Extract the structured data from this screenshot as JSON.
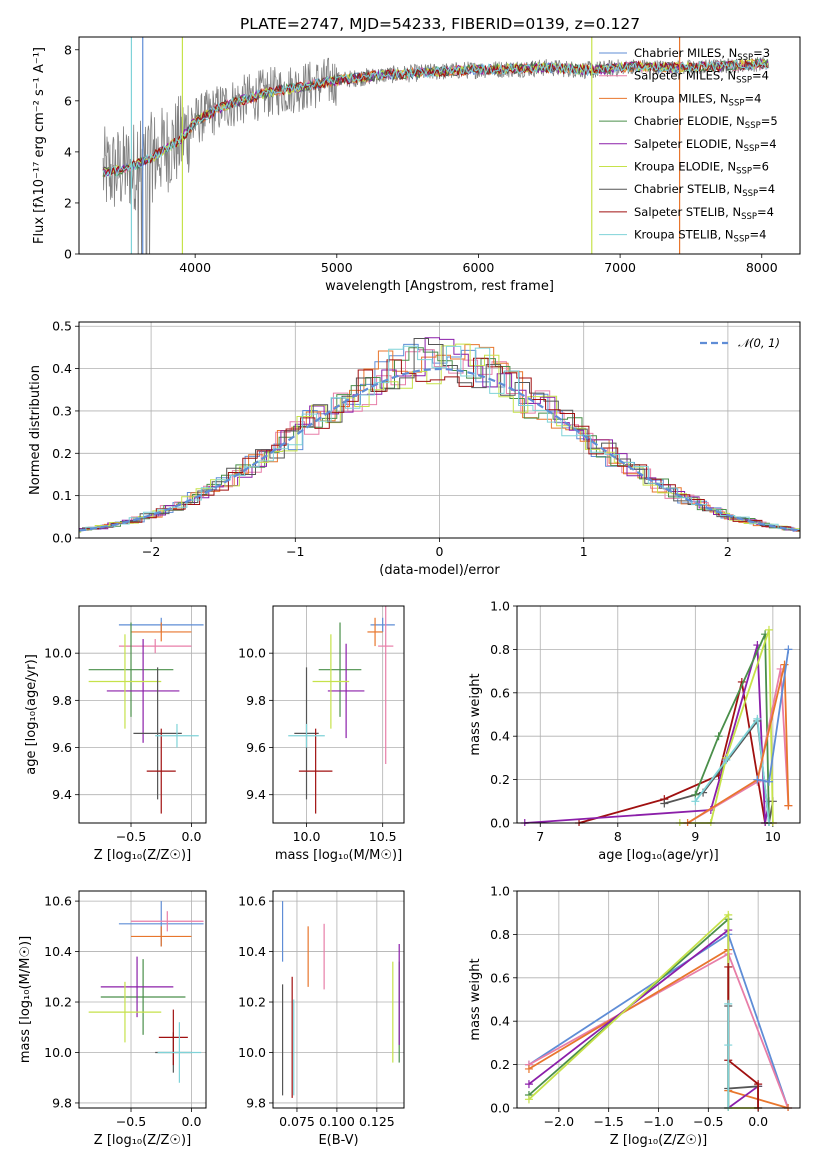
{
  "title": "PLATE=2747, MJD=54233, FIBERID=0139, z=0.127",
  "colors": {
    "gray": "#808080",
    "blue": "#5f8dd6",
    "orange": "#e8762d",
    "green": "#4a8f4a",
    "purple": "#8b1fa9",
    "pink": "#e87ea8",
    "yellowgreen": "#c6e24a",
    "darkgray": "#555555",
    "darkred": "#a01010",
    "cyan": "#7fd3d8"
  },
  "chart_data": [
    {
      "id": "spectrum",
      "type": "line",
      "xlabel": "wavelength [Angstrom, rest frame]",
      "ylabel": "Flux [fλ10⁻¹⁷ erg cm⁻² s⁻¹ A⁻¹]",
      "xlim": [
        3180,
        8270
      ],
      "ylim": [
        0,
        8.5
      ],
      "xticks": [
        4000,
        5000,
        6000,
        7000,
        8000
      ],
      "yticks": [
        0,
        2,
        4,
        6,
        8
      ],
      "continuum": {
        "x": [
          3350,
          3500,
          3700,
          3900,
          4000,
          4200,
          4500,
          4800,
          5000,
          5300,
          5600,
          5900,
          6200,
          6500,
          6800,
          7100,
          7400,
          7700,
          8000
        ],
        "y": [
          3.2,
          3.3,
          3.8,
          4.5,
          5.2,
          5.8,
          6.3,
          6.6,
          6.8,
          7.0,
          7.1,
          7.2,
          7.25,
          7.3,
          7.2,
          7.35,
          7.3,
          7.35,
          7.45
        ]
      },
      "legend": [
        {
          "label": "Chabrier MILES, N",
          "sub": "SSP",
          "suffix": "=3",
          "color": "#5f8dd6"
        },
        {
          "label": "Salpeter MILES, N",
          "sub": "SSP",
          "suffix": "=4",
          "color": "#e87ea8"
        },
        {
          "label": "Kroupa MILES, N",
          "sub": "SSP",
          "suffix": "=4",
          "color": "#e8762d"
        },
        {
          "label": "Chabrier ELODIE, N",
          "sub": "SSP",
          "suffix": "=5",
          "color": "#4a8f4a"
        },
        {
          "label": "Salpeter ELODIE, N",
          "sub": "SSP",
          "suffix": "=4",
          "color": "#8b1fa9"
        },
        {
          "label": "Kroupa ELODIE, N",
          "sub": "SSP",
          "suffix": "=6",
          "color": "#c6e24a"
        },
        {
          "label": "Chabrier STELIB, N",
          "sub": "SSP",
          "suffix": "=4",
          "color": "#555555"
        },
        {
          "label": "Salpeter STELIB, N",
          "sub": "SSP",
          "suffix": "=4",
          "color": "#a01010"
        },
        {
          "label": "Kroupa STELIB, N",
          "sub": "SSP",
          "suffix": "=4",
          "color": "#7fd3d8"
        }
      ]
    },
    {
      "id": "residuals",
      "type": "line",
      "xlabel": "(data-model)/error",
      "ylabel": "Normed distribution",
      "xlim": [
        -2.5,
        2.5
      ],
      "ylim": [
        0,
        0.51
      ],
      "xticks": [
        -2,
        -1,
        0,
        1,
        2
      ],
      "yticks": [
        0.0,
        0.1,
        0.2,
        0.3,
        0.4,
        0.5
      ],
      "legend": "𝒩(0, 1)",
      "gauss_color": "#5f8dd6"
    },
    {
      "id": "age_vs_Z",
      "type": "scatter",
      "xlabel": "Z [log₁₀(Z/Z☉)]",
      "ylabel": "age  [log₁₀(age/yr)]",
      "xlim": [
        -0.93,
        0.12
      ],
      "ylim": [
        9.28,
        10.2
      ],
      "xticks": [
        -0.5,
        0.0
      ],
      "yticks": [
        9.4,
        9.6,
        9.8,
        10.0
      ],
      "points": [
        {
          "x": -0.25,
          "xerr": 0.35,
          "y": 10.12,
          "yerr": 0.03,
          "color": "#5f8dd6"
        },
        {
          "x": -0.3,
          "xerr": 0.3,
          "y": 10.03,
          "yerr": 0.03,
          "color": "#e87ea8"
        },
        {
          "x": -0.25,
          "xerr": 0.25,
          "y": 10.09,
          "yerr": 0.04,
          "color": "#e8762d"
        },
        {
          "x": -0.5,
          "xerr": 0.35,
          "y": 9.93,
          "yerr": 0.2,
          "color": "#4a8f4a"
        },
        {
          "x": -0.4,
          "xerr": 0.3,
          "y": 9.84,
          "yerr": 0.22,
          "color": "#8b1fa9"
        },
        {
          "x": -0.55,
          "xerr": 0.3,
          "y": 9.88,
          "yerr": 0.2,
          "color": "#c6e24a"
        },
        {
          "x": -0.28,
          "xerr": 0.2,
          "y": 9.66,
          "yerr": 0.28,
          "color": "#555555"
        },
        {
          "x": -0.25,
          "xerr": 0.12,
          "y": 9.5,
          "yerr": 0.18,
          "color": "#a01010"
        },
        {
          "x": -0.12,
          "xerr": 0.18,
          "y": 9.65,
          "yerr": 0.05,
          "color": "#7fd3d8"
        }
      ]
    },
    {
      "id": "age_vs_mass",
      "type": "scatter",
      "xlabel": "mass [log₁₀(M/M☉)]",
      "ylabel": "",
      "xlim": [
        9.78,
        10.64
      ],
      "ylim": [
        9.28,
        10.2
      ],
      "xticks": [
        10.0,
        10.5
      ],
      "yticks": [
        9.4,
        9.6,
        9.8,
        10.0
      ],
      "points": [
        {
          "x": 10.5,
          "xerr": 0.08,
          "y": 10.12,
          "yerr": 0.03,
          "color": "#5f8dd6"
        },
        {
          "x": 10.52,
          "xerr": 0.05,
          "y": 10.03,
          "yerr": 0.5,
          "color": "#e87ea8"
        },
        {
          "x": 10.45,
          "xerr": 0.05,
          "y": 10.09,
          "yerr": 0.06,
          "color": "#e8762d"
        },
        {
          "x": 10.22,
          "xerr": 0.14,
          "y": 9.93,
          "yerr": 0.2,
          "color": "#4a8f4a"
        },
        {
          "x": 10.26,
          "xerr": 0.12,
          "y": 9.84,
          "yerr": 0.2,
          "color": "#8b1fa9"
        },
        {
          "x": 10.16,
          "xerr": 0.12,
          "y": 9.88,
          "yerr": 0.2,
          "color": "#c6e24a"
        },
        {
          "x": 10.0,
          "xerr": 0.08,
          "y": 9.66,
          "yerr": 0.28,
          "color": "#555555"
        },
        {
          "x": 10.06,
          "xerr": 0.11,
          "y": 9.5,
          "yerr": 0.18,
          "color": "#a01010"
        },
        {
          "x": 10.0,
          "xerr": 0.12,
          "y": 9.65,
          "yerr": 0.05,
          "color": "#7fd3d8"
        }
      ]
    },
    {
      "id": "weight_vs_age",
      "type": "line",
      "xlabel": "age  [log₁₀(age/yr)]",
      "ylabel": "mass weight",
      "xlim": [
        6.7,
        10.35
      ],
      "ylim": [
        0,
        1.0
      ],
      "xticks": [
        7,
        8,
        9,
        10
      ],
      "yticks": [
        0.0,
        0.2,
        0.4,
        0.6,
        0.8,
        1.0
      ],
      "series": [
        {
          "color": "#a01010",
          "x": [
            7.5,
            8.6,
            9.3,
            9.6,
            9.9,
            10.0
          ],
          "y": [
            0.0,
            0.11,
            0.22,
            0.65,
            0.0,
            0.0
          ]
        },
        {
          "color": "#8b1fa9",
          "x": [
            6.8,
            9.2,
            9.8,
            9.9,
            9.95
          ],
          "y": [
            0.0,
            0.06,
            0.82,
            0.0,
            0.1
          ]
        },
        {
          "color": "#555555",
          "x": [
            8.6,
            9.1,
            9.8,
            9.95,
            10.0
          ],
          "y": [
            0.09,
            0.14,
            0.47,
            0.0,
            0.1
          ]
        },
        {
          "color": "#4a8f4a",
          "x": [
            9.0,
            9.3,
            9.9,
            9.95
          ],
          "y": [
            0.13,
            0.4,
            0.87,
            0.0
          ]
        },
        {
          "color": "#c6e24a",
          "x": [
            8.8,
            9.2,
            9.4,
            9.95,
            10.0
          ],
          "y": [
            0.0,
            0.0,
            0.3,
            0.89,
            0.0
          ]
        },
        {
          "color": "#7fd3d8",
          "x": [
            9.0,
            9.4,
            9.8,
            9.95
          ],
          "y": [
            0.1,
            0.29,
            0.48,
            0.0
          ]
        },
        {
          "color": "#e87ea8",
          "x": [
            8.9,
            9.8,
            10.1,
            10.2
          ],
          "y": [
            0.0,
            0.19,
            0.71,
            0.08
          ]
        },
        {
          "color": "#e8762d",
          "x": [
            8.9,
            9.8,
            10.15,
            10.2
          ],
          "y": [
            0.0,
            0.2,
            0.73,
            0.08
          ]
        },
        {
          "color": "#5f8dd6",
          "x": [
            9.8,
            9.95,
            10.2
          ],
          "y": [
            0.2,
            0.19,
            0.8
          ]
        }
      ]
    },
    {
      "id": "mass_vs_Z",
      "type": "scatter",
      "xlabel": "Z [log₁₀(Z/Z☉)]",
      "ylabel": "mass [log₁₀(M/M☉)]",
      "xlim": [
        -0.93,
        0.12
      ],
      "ylim": [
        9.78,
        10.64
      ],
      "xticks": [
        -0.5,
        0.0
      ],
      "yticks": [
        9.8,
        10.0,
        10.2,
        10.4,
        10.6
      ],
      "points": [
        {
          "x": -0.25,
          "xerr": 0.35,
          "y": 10.51,
          "yerr": 0.09,
          "color": "#5f8dd6"
        },
        {
          "x": -0.2,
          "xerr": 0.3,
          "y": 10.52,
          "yerr": 0.04,
          "color": "#e87ea8"
        },
        {
          "x": -0.25,
          "xerr": 0.25,
          "y": 10.46,
          "yerr": 0.04,
          "color": "#e8762d"
        },
        {
          "x": -0.4,
          "xerr": 0.35,
          "y": 10.22,
          "yerr": 0.15,
          "color": "#4a8f4a"
        },
        {
          "x": -0.45,
          "xerr": 0.3,
          "y": 10.26,
          "yerr": 0.12,
          "color": "#8b1fa9"
        },
        {
          "x": -0.55,
          "xerr": 0.3,
          "y": 10.16,
          "yerr": 0.12,
          "color": "#c6e24a"
        },
        {
          "x": -0.15,
          "xerr": 0.15,
          "y": 10.0,
          "yerr": 0.08,
          "color": "#555555"
        },
        {
          "x": -0.15,
          "xerr": 0.12,
          "y": 10.06,
          "yerr": 0.11,
          "color": "#a01010"
        },
        {
          "x": -0.1,
          "xerr": 0.18,
          "y": 10.0,
          "yerr": 0.12,
          "color": "#7fd3d8"
        }
      ]
    },
    {
      "id": "mass_vs_ebv",
      "type": "scatter",
      "xlabel": "E(B-V)",
      "ylabel": "",
      "xlim": [
        0.06,
        0.142
      ],
      "ylim": [
        9.78,
        10.64
      ],
      "xticks": [
        0.075,
        0.1,
        0.125
      ],
      "xticklabels": [
        "0.075",
        "0.100",
        "0.125"
      ],
      "yticks": [
        9.8,
        10.0,
        10.2,
        10.4,
        10.6
      ],
      "points": [
        {
          "x": 0.066,
          "y": 10.48,
          "yerr": 0.12,
          "color": "#5f8dd6"
        },
        {
          "x": 0.092,
          "y": 10.38,
          "yerr": 0.13,
          "color": "#e87ea8"
        },
        {
          "x": 0.082,
          "y": 10.38,
          "yerr": 0.12,
          "color": "#e8762d"
        },
        {
          "x": 0.139,
          "y": 10.16,
          "yerr": 0.2,
          "color": "#4a8f4a"
        },
        {
          "x": 0.139,
          "y": 10.23,
          "yerr": 0.2,
          "color": "#8b1fa9"
        },
        {
          "x": 0.135,
          "y": 10.16,
          "yerr": 0.2,
          "color": "#c6e24a"
        },
        {
          "x": 0.066,
          "y": 10.05,
          "yerr": 0.22,
          "color": "#555555"
        },
        {
          "x": 0.072,
          "y": 10.06,
          "yerr": 0.24,
          "color": "#a01010"
        },
        {
          "x": 0.073,
          "y": 10.02,
          "yerr": 0.19,
          "color": "#7fd3d8"
        }
      ]
    },
    {
      "id": "weight_vs_Z",
      "type": "line",
      "xlabel": "Z [log₁₀(Z/Z☉)]",
      "ylabel": "mass weight",
      "xlim": [
        -2.42,
        0.42
      ],
      "ylim": [
        0,
        1.0
      ],
      "xticks": [
        -2.0,
        -1.5,
        -1.0,
        -0.5,
        0.0
      ],
      "yticks": [
        0.0,
        0.2,
        0.4,
        0.6,
        0.8,
        1.0
      ],
      "series": [
        {
          "color": "#5f8dd6",
          "x": [
            -2.3,
            -0.3,
            0.3
          ],
          "y": [
            0.2,
            0.8,
            0.0
          ]
        },
        {
          "color": "#e87ea8",
          "x": [
            -2.3,
            -0.3,
            0.3
          ],
          "y": [
            0.2,
            0.71,
            0.0
          ]
        },
        {
          "color": "#e8762d",
          "x": [
            -2.3,
            -0.3,
            -0.3,
            0.3
          ],
          "y": [
            0.18,
            0.73,
            0.08,
            0.0
          ]
        },
        {
          "color": "#4a8f4a",
          "x": [
            -2.3,
            -0.3,
            -0.3
          ],
          "y": [
            0.06,
            0.87,
            0.0
          ]
        },
        {
          "color": "#8b1fa9",
          "x": [
            -2.3,
            -0.3,
            -0.3,
            0.0
          ],
          "y": [
            0.11,
            0.82,
            0.0,
            0.1
          ]
        },
        {
          "color": "#c6e24a",
          "x": [
            -2.3,
            -0.3,
            -0.3,
            0.0
          ],
          "y": [
            0.04,
            0.89,
            0.0,
            0.0
          ]
        },
        {
          "color": "#555555",
          "x": [
            -0.3,
            -0.3,
            0.0,
            0.0
          ],
          "y": [
            0.47,
            0.09,
            0.1,
            0.0
          ]
        },
        {
          "color": "#a01010",
          "x": [
            -0.3,
            -0.3,
            0.0,
            0.0
          ],
          "y": [
            0.65,
            0.22,
            0.11,
            0.0
          ]
        },
        {
          "color": "#7fd3d8",
          "x": [
            -0.3,
            -0.3,
            -0.3
          ],
          "y": [
            0.48,
            0.29,
            0.0
          ]
        }
      ]
    }
  ]
}
